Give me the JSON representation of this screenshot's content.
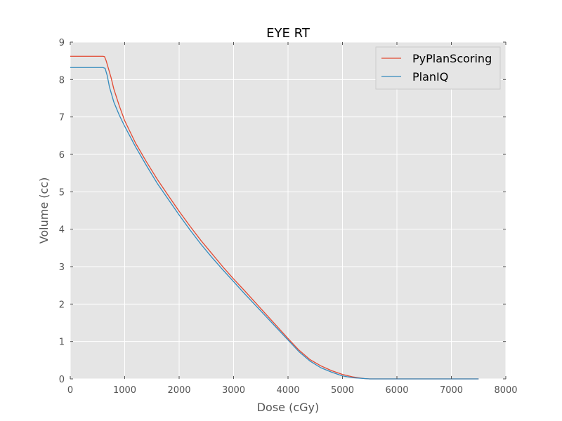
{
  "chart_data": {
    "type": "line",
    "title": "EYE RT",
    "xlabel": "Dose (cGy)",
    "ylabel": "Volume (cc)",
    "xlim": [
      0,
      8000
    ],
    "ylim": [
      0,
      9
    ],
    "xticks": [
      0,
      1000,
      2000,
      3000,
      4000,
      5000,
      6000,
      7000,
      8000
    ],
    "yticks": [
      0,
      1,
      2,
      3,
      4,
      5,
      6,
      7,
      8,
      9
    ],
    "grid": true,
    "legend_position": "top-right",
    "background": "#e5e5e5",
    "series": [
      {
        "name": "PyPlanScoring",
        "color": "#e24a33",
        "x": [
          0,
          600,
          630,
          660,
          700,
          750,
          800,
          900,
          1000,
          1200,
          1400,
          1600,
          1800,
          2000,
          2200,
          2400,
          2600,
          2800,
          3000,
          3200,
          3400,
          3600,
          3800,
          4000,
          4200,
          4400,
          4600,
          4800,
          5000,
          5200,
          5400,
          5500,
          6000,
          7000,
          7500
        ],
        "y": [
          8.62,
          8.62,
          8.61,
          8.5,
          8.3,
          8.05,
          7.75,
          7.3,
          6.9,
          6.3,
          5.8,
          5.33,
          4.9,
          4.48,
          4.08,
          3.7,
          3.35,
          3.0,
          2.67,
          2.36,
          2.04,
          1.72,
          1.4,
          1.08,
          0.77,
          0.52,
          0.35,
          0.22,
          0.12,
          0.05,
          0.01,
          0.0,
          0.0,
          0.0,
          0.0
        ]
      },
      {
        "name": "PlanIQ",
        "color": "#348abd",
        "x": [
          0,
          600,
          640,
          680,
          720,
          800,
          900,
          1000,
          1200,
          1400,
          1600,
          1800,
          2000,
          2200,
          2400,
          2600,
          2800,
          3000,
          3200,
          3400,
          3600,
          3800,
          4000,
          4200,
          4400,
          4600,
          4800,
          5000,
          5200,
          5400,
          5500,
          6000,
          7000,
          7500
        ],
        "y": [
          8.32,
          8.32,
          8.3,
          8.1,
          7.8,
          7.4,
          7.05,
          6.75,
          6.2,
          5.7,
          5.22,
          4.8,
          4.38,
          3.98,
          3.6,
          3.25,
          2.92,
          2.6,
          2.28,
          1.97,
          1.66,
          1.35,
          1.04,
          0.73,
          0.48,
          0.3,
          0.18,
          0.08,
          0.03,
          0.01,
          0.0,
          0.0,
          0.0,
          0.0
        ]
      }
    ]
  }
}
